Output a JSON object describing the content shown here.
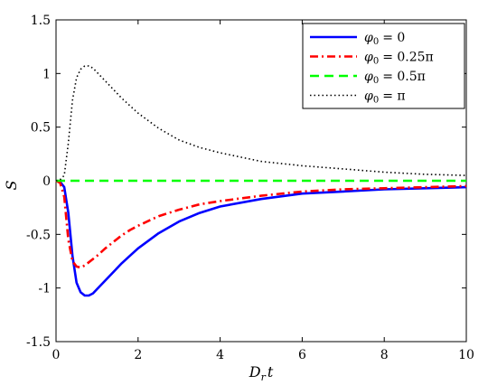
{
  "chart_data": {
    "type": "line",
    "xlabel": "D_r t",
    "xlabel_parts": {
      "main": "D",
      "sub": "r",
      "tail": "t"
    },
    "ylabel": "S",
    "xlim": [
      0,
      10
    ],
    "ylim": [
      -1.5,
      1.5
    ],
    "x_ticks": [
      0,
      2,
      4,
      6,
      8,
      10
    ],
    "x_tick_labels": [
      "0",
      "2",
      "4",
      "6",
      "8",
      "10"
    ],
    "y_ticks": [
      -1.5,
      -1,
      -0.5,
      0,
      0.5,
      1,
      1.5
    ],
    "y_tick_labels": [
      "-1.5",
      "-1",
      "-0.5",
      "0",
      "0.5",
      "1",
      "1.5"
    ],
    "grid": false,
    "legend_position": "top-right",
    "x": [
      0,
      0.1,
      0.2,
      0.3,
      0.4,
      0.5,
      0.6,
      0.7,
      0.8,
      0.9,
      1.0,
      1.2,
      1.4,
      1.6,
      1.8,
      2.0,
      2.5,
      3.0,
      3.5,
      4.0,
      5.0,
      6.0,
      7.0,
      8.0,
      9.0,
      10.0
    ],
    "series": [
      {
        "name": "φ0 = 0",
        "label_text": "= 0",
        "color": "#0000ff",
        "dash": "solid",
        "values": [
          0,
          -0.01,
          -0.06,
          -0.3,
          -0.7,
          -0.95,
          -1.04,
          -1.07,
          -1.07,
          -1.05,
          -1.01,
          -0.93,
          -0.85,
          -0.77,
          -0.7,
          -0.63,
          -0.49,
          -0.38,
          -0.3,
          -0.24,
          -0.17,
          -0.12,
          -0.1,
          -0.08,
          -0.07,
          -0.06
        ]
      },
      {
        "name": "φ0 = 0.25π",
        "label_text": "= 0.25π",
        "color": "#ff0000",
        "dash": "dashdot",
        "values": [
          0,
          -0.02,
          -0.15,
          -0.55,
          -0.75,
          -0.8,
          -0.81,
          -0.79,
          -0.76,
          -0.73,
          -0.7,
          -0.63,
          -0.57,
          -0.51,
          -0.46,
          -0.42,
          -0.33,
          -0.27,
          -0.22,
          -0.19,
          -0.14,
          -0.1,
          -0.08,
          -0.07,
          -0.06,
          -0.05
        ]
      },
      {
        "name": "φ0 = 0.5π",
        "label_text": "= 0.5π",
        "color": "#00ff00",
        "dash": "dashed",
        "values": [
          0,
          0,
          0,
          0,
          0,
          0,
          0,
          0,
          0,
          0,
          0,
          0,
          0,
          0,
          0,
          0,
          0,
          0,
          0,
          0,
          0,
          0,
          0,
          0,
          0,
          0
        ]
      },
      {
        "name": "φ0 = π",
        "label_text": "= π",
        "color": "#000000",
        "dash": "dotted",
        "values": [
          0,
          0.01,
          0.05,
          0.35,
          0.75,
          0.96,
          1.04,
          1.07,
          1.07,
          1.05,
          1.01,
          0.93,
          0.85,
          0.77,
          0.7,
          0.63,
          0.49,
          0.38,
          0.31,
          0.26,
          0.18,
          0.14,
          0.11,
          0.08,
          0.06,
          0.05
        ]
      }
    ]
  }
}
